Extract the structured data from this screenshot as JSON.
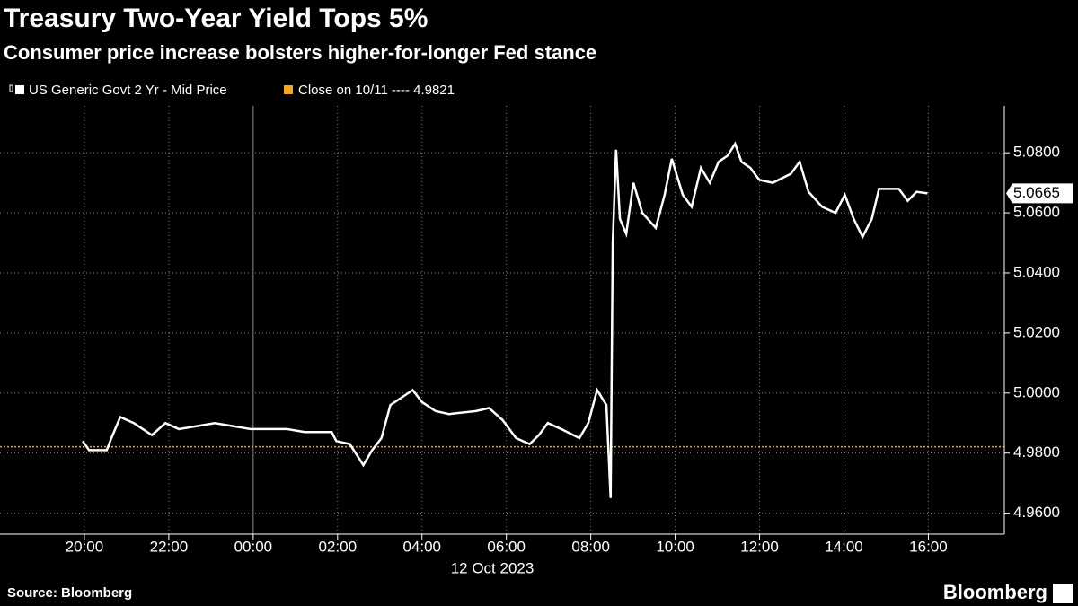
{
  "chart_data": {
    "type": "line",
    "title": "Treasury Two-Year Yield Tops 5%",
    "subtitle": "Consumer price increase bolsters higher-for-longer Fed stance",
    "x_date_label": "12 Oct 2023",
    "source": "Source: Bloomberg",
    "brand": "Bloomberg",
    "xlim": [
      -6,
      17.8
    ],
    "xticks": [
      {
        "value": -4,
        "label": "20:00"
      },
      {
        "value": -2,
        "label": "22:00"
      },
      {
        "value": 0,
        "label": "00:00"
      },
      {
        "value": 2,
        "label": "02:00"
      },
      {
        "value": 4,
        "label": "04:00"
      },
      {
        "value": 6,
        "label": "06:00"
      },
      {
        "value": 8,
        "label": "08:00"
      },
      {
        "value": 10,
        "label": "10:00"
      },
      {
        "value": 12,
        "label": "12:00"
      },
      {
        "value": 14,
        "label": "14:00"
      },
      {
        "value": 16,
        "label": "16:00"
      }
    ],
    "ylim": [
      4.953,
      5.0956
    ],
    "yticks": [
      {
        "value": 4.96,
        "label": "4.9600"
      },
      {
        "value": 4.98,
        "label": "4.9800"
      },
      {
        "value": 5.0,
        "label": "5.0000"
      },
      {
        "value": 5.02,
        "label": "5.0200"
      },
      {
        "value": 5.04,
        "label": "5.0400"
      },
      {
        "value": 5.06,
        "label": "5.0600"
      },
      {
        "value": 5.08,
        "label": "5.0800"
      }
    ],
    "grid": true,
    "series": [
      {
        "name": "US Generic Govt 2 Yr - Mid Price",
        "color": "#ffffff",
        "x": [
          -4.04,
          -3.89,
          -3.47,
          -3.36,
          -3.15,
          -2.83,
          -2.4,
          -2.08,
          -1.76,
          -0.91,
          -0.06,
          0.8,
          1.22,
          1.86,
          1.97,
          2.29,
          2.61,
          2.82,
          3.04,
          3.25,
          3.57,
          3.78,
          4.0,
          4.32,
          4.64,
          5.28,
          5.59,
          5.91,
          6.23,
          6.55,
          6.77,
          6.98,
          7.3,
          7.73,
          7.94,
          8.15,
          8.37,
          8.47,
          8.52,
          8.6,
          8.69,
          8.84,
          9.01,
          9.22,
          9.54,
          9.75,
          9.92,
          10.18,
          10.39,
          10.61,
          10.82,
          11.03,
          11.24,
          11.42,
          11.57,
          11.78,
          11.99,
          12.31,
          12.74,
          12.95,
          13.16,
          13.48,
          13.8,
          14.02,
          14.23,
          14.44,
          14.66,
          14.83,
          15.08,
          15.3,
          15.51,
          15.72,
          15.98
        ],
        "values": [
          4.984,
          4.981,
          4.981,
          4.985,
          4.992,
          4.99,
          4.986,
          4.99,
          4.988,
          4.99,
          4.988,
          4.988,
          4.987,
          4.987,
          4.984,
          4.983,
          4.976,
          4.981,
          4.985,
          4.996,
          4.999,
          5.001,
          4.997,
          4.994,
          4.993,
          4.994,
          4.995,
          4.991,
          4.985,
          4.983,
          4.986,
          4.99,
          4.988,
          4.985,
          4.99,
          5.001,
          4.996,
          4.965,
          5.05,
          5.081,
          5.058,
          5.053,
          5.07,
          5.06,
          5.055,
          5.066,
          5.078,
          5.066,
          5.062,
          5.075,
          5.07,
          5.077,
          5.079,
          5.083,
          5.077,
          5.075,
          5.071,
          5.07,
          5.073,
          5.077,
          5.067,
          5.062,
          5.06,
          5.066,
          5.058,
          5.052,
          5.058,
          5.068,
          5.068,
          5.068,
          5.064,
          5.067,
          5.0665
        ]
      }
    ],
    "last_value": 5.0665,
    "reference_line": {
      "name": "Close on 10/11 ---- 4.9821",
      "value": 4.9821,
      "color": "#f5a623"
    }
  }
}
